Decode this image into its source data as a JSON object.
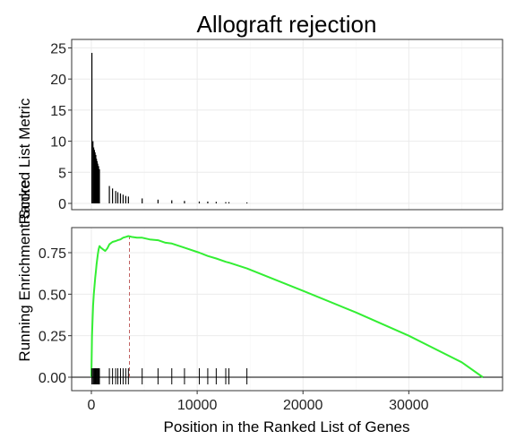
{
  "chart_data": {
    "type": "line",
    "title": "Allograft rejection",
    "xlabel": "Position in the Ranked List of Genes",
    "xlim": [
      0,
      38500
    ],
    "xticks": [
      0,
      10000,
      20000,
      30000
    ],
    "xtick_labels": [
      "0",
      "10000",
      "20000",
      "30000"
    ],
    "grid": true,
    "panels": [
      {
        "name": "ranked_metric",
        "ylabel": "Ranked List Metric",
        "ylim": [
          0,
          25.5
        ],
        "yticks": [
          0,
          5,
          10,
          15,
          20,
          25
        ],
        "ytick_labels": [
          "0",
          "5",
          "10",
          "15",
          "20",
          "25"
        ],
        "bars": [
          {
            "x": 50,
            "y": 24.2
          },
          {
            "x": 150,
            "y": 10.0
          },
          {
            "x": 220,
            "y": 9.0
          },
          {
            "x": 290,
            "y": 8.6
          },
          {
            "x": 350,
            "y": 8.2
          },
          {
            "x": 420,
            "y": 7.8
          },
          {
            "x": 480,
            "y": 7.2
          },
          {
            "x": 540,
            "y": 6.8
          },
          {
            "x": 600,
            "y": 6.4
          },
          {
            "x": 680,
            "y": 6.0
          },
          {
            "x": 760,
            "y": 5.5
          },
          {
            "x": 1700,
            "y": 2.8
          },
          {
            "x": 2000,
            "y": 2.4
          },
          {
            "x": 2300,
            "y": 2.0
          },
          {
            "x": 2500,
            "y": 1.8
          },
          {
            "x": 2750,
            "y": 1.6
          },
          {
            "x": 3000,
            "y": 1.4
          },
          {
            "x": 3250,
            "y": 1.2
          },
          {
            "x": 3500,
            "y": 1.1
          },
          {
            "x": 4800,
            "y": 0.8
          },
          {
            "x": 6300,
            "y": 0.6
          },
          {
            "x": 7600,
            "y": 0.5
          },
          {
            "x": 8800,
            "y": 0.4
          },
          {
            "x": 10200,
            "y": 0.3
          },
          {
            "x": 11000,
            "y": 0.3
          },
          {
            "x": 11800,
            "y": 0.25
          },
          {
            "x": 12700,
            "y": 0.2
          },
          {
            "x": 13000,
            "y": 0.2
          },
          {
            "x": 14700,
            "y": 0.15
          }
        ]
      },
      {
        "name": "running_enrichment_score",
        "ylabel": "Running Enrichment Score",
        "ylim": [
          -0.06,
          0.9
        ],
        "yticks": [
          0.0,
          0.25,
          0.5,
          0.75
        ],
        "ytick_labels": [
          "0.00",
          "0.25",
          "0.50",
          "0.75"
        ],
        "series": [
          {
            "color": "#33ee33",
            "points": [
              [
                0,
                0.0
              ],
              [
                60,
                0.25
              ],
              [
                160,
                0.43
              ],
              [
                230,
                0.5
              ],
              [
                300,
                0.55
              ],
              [
                360,
                0.6
              ],
              [
                430,
                0.64
              ],
              [
                490,
                0.68
              ],
              [
                550,
                0.71
              ],
              [
                610,
                0.74
              ],
              [
                690,
                0.77
              ],
              [
                770,
                0.79
              ],
              [
                900,
                0.78
              ],
              [
                1100,
                0.77
              ],
              [
                1300,
                0.76
              ],
              [
                1500,
                0.775
              ],
              [
                1700,
                0.8
              ],
              [
                2000,
                0.815
              ],
              [
                2300,
                0.82
              ],
              [
                2500,
                0.825
              ],
              [
                2750,
                0.83
              ],
              [
                3000,
                0.84
              ],
              [
                3250,
                0.845
              ],
              [
                3500,
                0.85
              ],
              [
                3800,
                0.845
              ],
              [
                4300,
                0.84
              ],
              [
                4800,
                0.84
              ],
              [
                5500,
                0.83
              ],
              [
                6300,
                0.825
              ],
              [
                7000,
                0.81
              ],
              [
                7600,
                0.805
              ],
              [
                8800,
                0.78
              ],
              [
                10200,
                0.75
              ],
              [
                11000,
                0.73
              ],
              [
                11800,
                0.715
              ],
              [
                12700,
                0.695
              ],
              [
                13000,
                0.69
              ],
              [
                14700,
                0.655
              ],
              [
                20000,
                0.52
              ],
              [
                25000,
                0.39
              ],
              [
                30000,
                0.25
              ],
              [
                35000,
                0.09
              ],
              [
                37000,
                0.0
              ]
            ]
          }
        ],
        "peak_x": 3600,
        "hits": [
          50,
          150,
          220,
          290,
          350,
          420,
          480,
          540,
          600,
          680,
          760,
          1700,
          2000,
          2300,
          2500,
          2750,
          3000,
          3250,
          3500,
          4800,
          6300,
          7600,
          8800,
          10200,
          11000,
          11800,
          12700,
          13000,
          14700
        ]
      }
    ]
  },
  "colors": {
    "background": "#ffffff",
    "grid": "#ebebeb",
    "panel_border": "#333333",
    "bars": "#000000",
    "es_line": "#33ee33",
    "peak_line": "#c06060",
    "hits": "#000000"
  }
}
